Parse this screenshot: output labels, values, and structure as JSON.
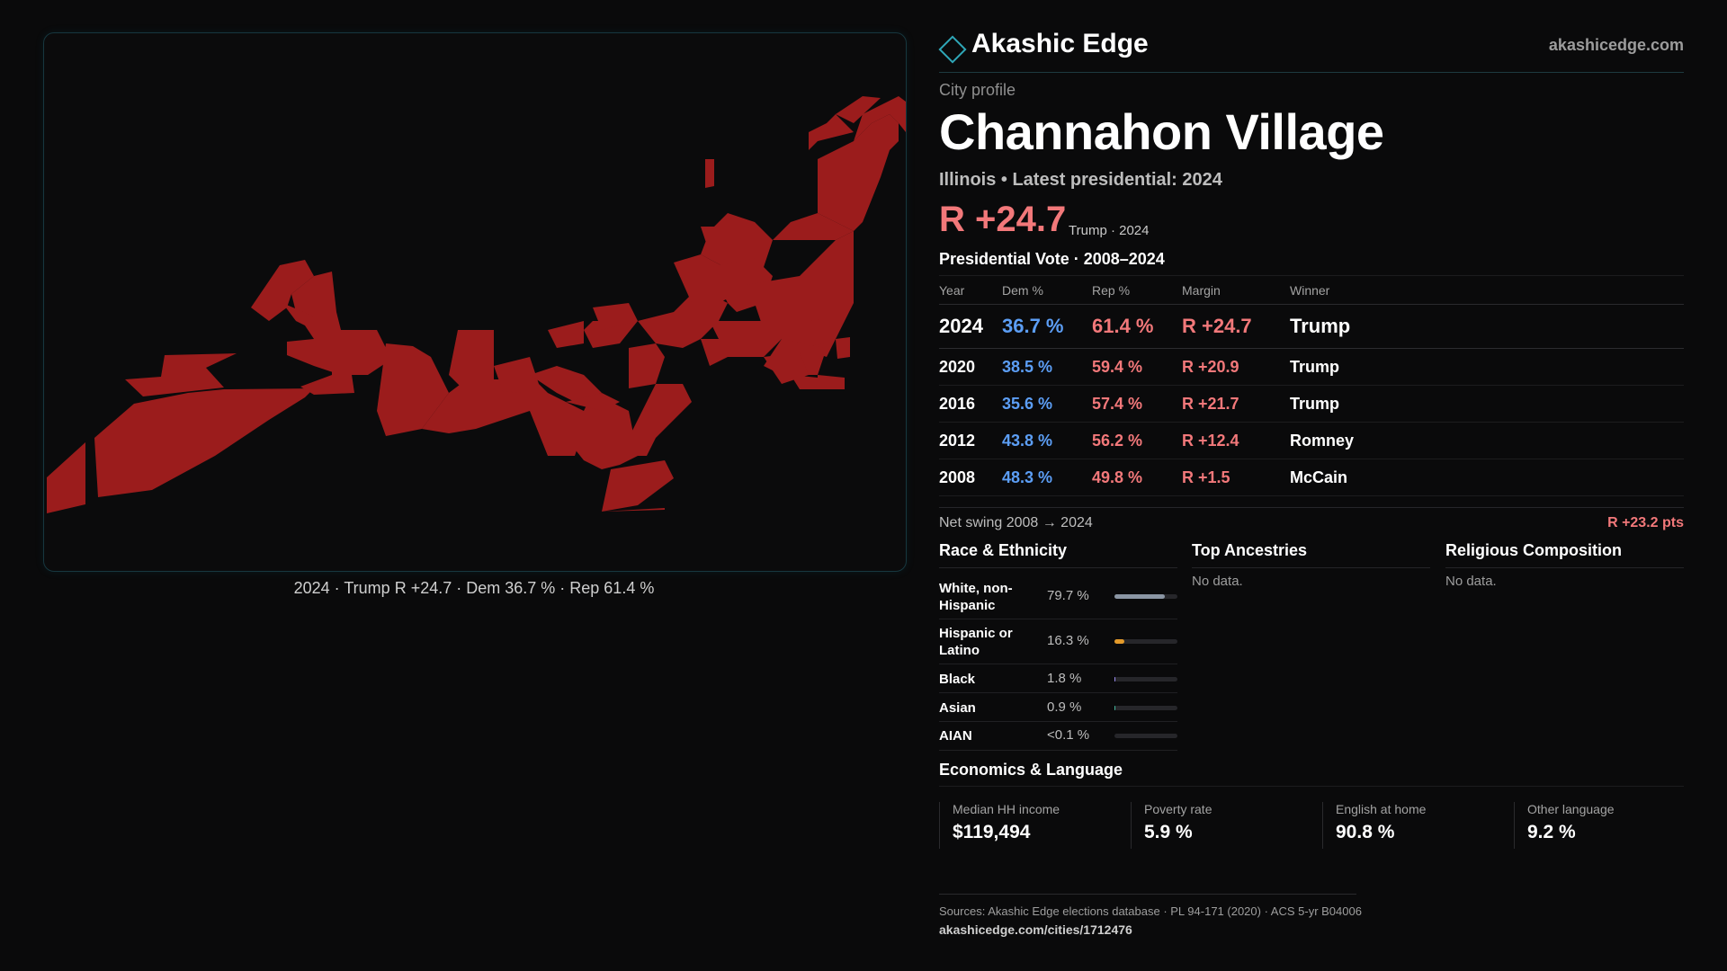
{
  "brand": {
    "name": "Akashic Edge",
    "url": "akashicedge.com"
  },
  "profile": {
    "label": "City profile",
    "city": "Channahon Village",
    "subtitle": "Illinois • Latest presidential: 2024",
    "margin": "R +24.7",
    "margin_note": "Trump · 2024"
  },
  "map": {
    "caption": "2024 · Trump R +24.7 · Dem 36.7 % · Rep 61.4 %",
    "fill_color": "#9b1c1c"
  },
  "votes": {
    "heading": "Presidential Vote · 2008–2024",
    "columns": [
      "Year",
      "Dem %",
      "Rep %",
      "Margin",
      "Winner"
    ],
    "rows": [
      {
        "year": "2024",
        "dem": "36.7 %",
        "rep": "61.4 %",
        "margin": "R +24.7",
        "winner": "Trump"
      },
      {
        "year": "2020",
        "dem": "38.5 %",
        "rep": "59.4 %",
        "margin": "R +20.9",
        "winner": "Trump"
      },
      {
        "year": "2016",
        "dem": "35.6 %",
        "rep": "57.4 %",
        "margin": "R +21.7",
        "winner": "Trump"
      },
      {
        "year": "2012",
        "dem": "43.8 %",
        "rep": "56.2 %",
        "margin": "R +12.4",
        "winner": "Romney"
      },
      {
        "year": "2008",
        "dem": "48.3 %",
        "rep": "49.8 %",
        "margin": "R +1.5",
        "winner": "McCain"
      }
    ]
  },
  "swing": {
    "label": "Net swing 2008 → 2024",
    "value": "R +23.2 pts"
  },
  "race": {
    "heading": "Race & Ethnicity",
    "items": [
      {
        "label": "White, non-Hispanic",
        "pct": "79.7 %",
        "value": 0.797,
        "color": "#8a95a3"
      },
      {
        "label": "Hispanic or Latino",
        "pct": "16.3 %",
        "value": 0.163,
        "color": "#e39a2a"
      },
      {
        "label": "Black",
        "pct": "1.8 %",
        "value": 0.018,
        "color": "#9b8cf0"
      },
      {
        "label": "Asian",
        "pct": "0.9 %",
        "value": 0.009,
        "color": "#43b59a"
      },
      {
        "label": "AIAN",
        "pct": "<0.1 %",
        "value": 0.0,
        "color": "#c46a8d"
      }
    ]
  },
  "ancestries": {
    "heading": "Top Ancestries",
    "empty": "No data."
  },
  "religion": {
    "heading": "Religious Composition",
    "empty": "No data."
  },
  "economics": {
    "heading": "Economics & Language",
    "stats": [
      {
        "label": "Median HH income",
        "value": "$119,494"
      },
      {
        "label": "Poverty rate",
        "value": "5.9 %"
      },
      {
        "label": "English at home",
        "value": "90.8 %"
      },
      {
        "label": "Other language",
        "value": "9.2 %"
      }
    ]
  },
  "sources": {
    "text": "Sources: Akashic Edge elections database · PL 94-171 (2020) · ACS 5-yr B04006",
    "url": "akashicedge.com/cities/1712476"
  }
}
